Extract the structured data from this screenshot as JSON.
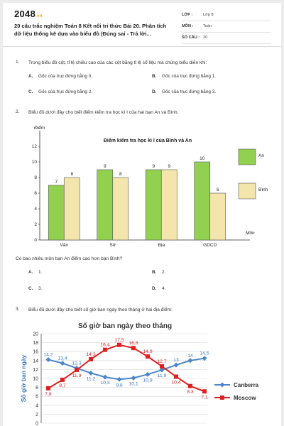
{
  "header": {
    "logo_main": "2048",
    "logo_suffix": ".vn",
    "title": "20 câu trắc nghiệm Toán 8 Kết nối tri thức Bài 20. Phân tích dữ liệu thống kê dựa vào biểu đồ (Đúng sai - Trả lời...",
    "meta": [
      {
        "label": "LỚP :",
        "value": "Lớp 8"
      },
      {
        "label": "MÔN :",
        "value": "Toán"
      },
      {
        "label": "SỐ CÂU :",
        "value": "20"
      }
    ]
  },
  "questions": [
    {
      "number": "1.",
      "text": "Trong biểu đồ cột, tỉ lệ chiều cao của các cột bằng tỉ lệ số liệu mà chúng biểu diễn khi:",
      "options": [
        {
          "letter": "A.",
          "text": "Gốc của trục đứng bằng 0."
        },
        {
          "letter": "B.",
          "text": "Gốc của trục đứng bằng 1."
        },
        {
          "letter": "C.",
          "text": "Gốc của trục đứng bằng 2."
        },
        {
          "letter": "D.",
          "text": "Gốc của trục đứng bằng 3."
        }
      ]
    },
    {
      "number": "2.",
      "text": "Biểu đồ dưới đây cho biết điểm kiểm tra học kì I của hai bạn An và Bình.",
      "followup": "Có bao nhiêu môn bạn An điểm cao hơn bạn Bình?",
      "options": [
        {
          "letter": "A.",
          "text": "1."
        },
        {
          "letter": "B.",
          "text": "2."
        },
        {
          "letter": "C.",
          "text": "3."
        },
        {
          "letter": "D.",
          "text": "4."
        }
      ]
    },
    {
      "number": "3.",
      "text": "Biểu đồ dưới đây cho biết số giờ ban ngày theo tháng ở hai địa điểm:"
    }
  ],
  "chart_data": [
    {
      "type": "bar",
      "title": "Điểm kiểm tra học kì I của Bình và An",
      "ylabel": "Điểm",
      "xlabel": "Môn",
      "ylim": [
        0,
        12
      ],
      "yticks": [
        "0",
        "2",
        "4",
        "6",
        "8",
        "10",
        "12"
      ],
      "categories": [
        "Văn",
        "Sử",
        "Địa",
        "GDCD"
      ],
      "series": [
        {
          "name": "An",
          "values": [
            7,
            9,
            9,
            10
          ],
          "color": "#92d050",
          "labels": [
            "7",
            "9",
            "9",
            "10"
          ]
        },
        {
          "name": "Bình",
          "values": [
            8,
            8,
            9,
            6
          ],
          "color": "#f3e5ab",
          "labels": [
            "8",
            "8",
            "9",
            "6"
          ]
        }
      ],
      "legend": "right"
    },
    {
      "type": "line",
      "title": "Số giờ ban ngày theo tháng",
      "ylabel": "Số giờ ban ngày",
      "ylim": [
        0,
        20
      ],
      "yticks": [
        "0",
        "2",
        "4",
        "6",
        "8",
        "10",
        "12",
        "14",
        "16",
        "18",
        "20"
      ],
      "x": [
        1,
        2,
        3,
        4,
        5,
        6,
        7,
        8,
        9,
        10,
        11,
        12
      ],
      "series": [
        {
          "name": "Canberra",
          "color": "#4a86c8",
          "values": [
            14.2,
            13.4,
            12.3,
            11.2,
            10.3,
            9.8,
            10.1,
            10.9,
            11.9,
            13,
            14,
            14.5
          ],
          "labels": [
            "14,2",
            "13,4",
            "12,3",
            "11,2",
            "10,3",
            "9,8",
            "10,1",
            "10,9",
            "11,9",
            "13",
            "14",
            "14,5"
          ]
        },
        {
          "name": "Moscow",
          "color": "#e02020",
          "values": [
            7.8,
            9.7,
            11.9,
            14.3,
            16.4,
            17.5,
            16.8,
            14.9,
            12.7,
            10.4,
            8.3,
            7.1
          ],
          "labels": [
            "7,8",
            "9,7",
            "11,9",
            "14,3",
            "16,4",
            "17,5",
            "16,8",
            "14,9",
            "12,7",
            "10,4",
            "8,3",
            "7,1"
          ]
        }
      ],
      "legend": "right"
    }
  ]
}
